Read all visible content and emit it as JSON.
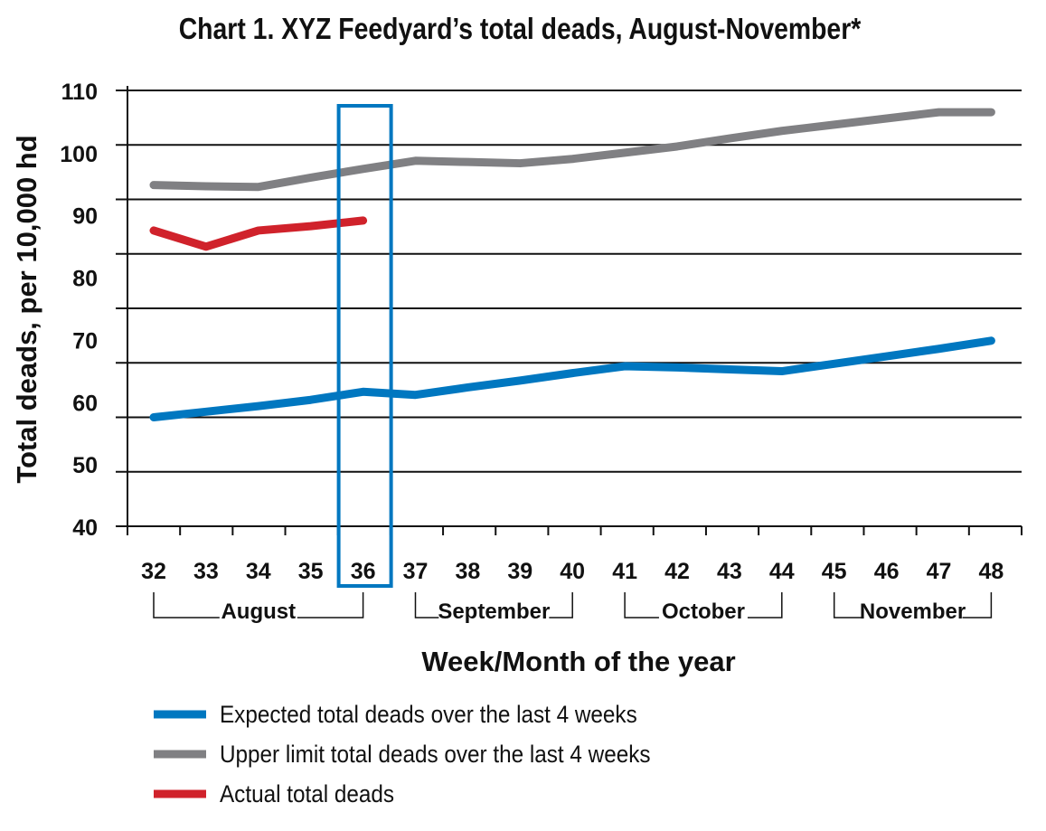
{
  "chart_data": {
    "type": "line",
    "title": "Chart 1. XYZ Feedyard’s total deads, August-November*",
    "xlabel": "Week/Month of the year",
    "ylabel": "Total deads, per 10,000 hd",
    "ylim": [
      40,
      110
    ],
    "yticks": [
      "110",
      "100",
      "90",
      "80",
      "70",
      "60",
      "50",
      "40"
    ],
    "x": [
      32,
      33,
      34,
      35,
      36,
      37,
      38,
      39,
      40,
      41,
      42,
      43,
      44,
      45,
      46,
      47,
      48
    ],
    "xtick_labels": [
      "32",
      "33",
      "34",
      "35",
      "36",
      "37",
      "38",
      "39",
      "40",
      "41",
      "42",
      "43",
      "44",
      "45",
      "46",
      "47",
      "48"
    ],
    "months": [
      {
        "label": "August",
        "from": 32,
        "to": 36
      },
      {
        "label": "September",
        "from": 37,
        "to": 40
      },
      {
        "label": "October",
        "from": 41,
        "to": 44
      },
      {
        "label": "November",
        "from": 45,
        "to": 48
      }
    ],
    "highlight_week": 36,
    "grid": true,
    "legend_placement": "bottom",
    "series": [
      {
        "name": "Expected total deads over the last 4 weeks",
        "color": "#0077c0",
        "values": [
          57.5,
          58.4,
          59.3,
          60.3,
          61.6,
          61.1,
          62.3,
          63.4,
          64.6,
          65.7,
          65.5,
          65.2,
          64.9,
          66.1,
          67.3,
          68.5,
          69.8
        ]
      },
      {
        "name": "Upper limit total deads over the last 4 weeks",
        "color": "#808083",
        "values": [
          94.8,
          94.6,
          94.5,
          96.0,
          97.4,
          98.7,
          98.5,
          98.3,
          99.0,
          100.0,
          101.0,
          102.3,
          103.5,
          104.5,
          105.5,
          106.5,
          106.5
        ]
      },
      {
        "name": "Actual total deads",
        "color": "#d0222b",
        "values": [
          87.5,
          84.9,
          87.5,
          88.2,
          89.1,
          null,
          null,
          null,
          null,
          null,
          null,
          null,
          null,
          null,
          null,
          null,
          null
        ]
      }
    ]
  }
}
